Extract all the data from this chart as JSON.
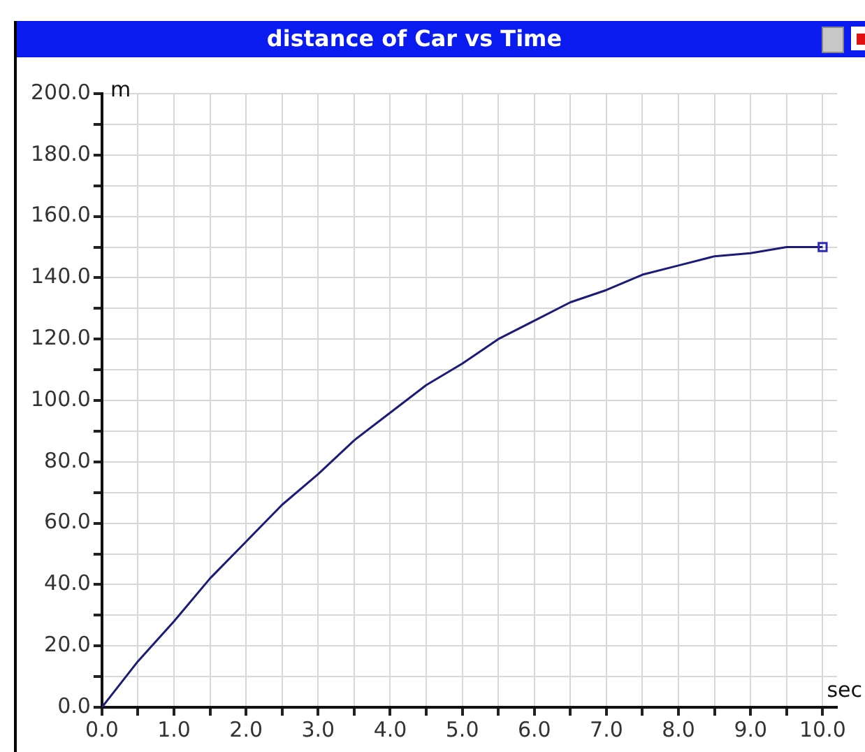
{
  "chart_data": {
    "type": "line",
    "title": "distance of Car vs Time",
    "xlabel": "sec",
    "ylabel": "m",
    "x": [
      0,
      0.5,
      1,
      1.5,
      2,
      2.5,
      3,
      3.5,
      4,
      4.5,
      5,
      5.5,
      6,
      6.5,
      7,
      7.5,
      8,
      8.5,
      9,
      9.5,
      10
    ],
    "series": [
      {
        "color": "#1c1c78",
        "values": [
          0,
          15,
          28,
          42,
          54,
          66,
          76,
          87,
          96,
          105,
          112,
          120,
          126,
          132,
          136,
          141,
          144,
          147,
          148,
          150,
          150
        ]
      }
    ],
    "xlim": [
      0,
      10.2
    ],
    "xticks": [
      {
        "value": 0,
        "label": "0.0"
      },
      {
        "value": 0.5,
        "label": null
      },
      {
        "value": 1,
        "label": "1.0"
      },
      {
        "value": 1.5,
        "label": null
      },
      {
        "value": 2,
        "label": "2.0"
      },
      {
        "value": 2.5,
        "label": null
      },
      {
        "value": 3,
        "label": "3.0"
      },
      {
        "value": 3.5,
        "label": null
      },
      {
        "value": 4,
        "label": "4.0"
      },
      {
        "value": 4.5,
        "label": null
      },
      {
        "value": 5,
        "label": "5.0"
      },
      {
        "value": 5.5,
        "label": null
      },
      {
        "value": 6,
        "label": "6.0"
      },
      {
        "value": 6.5,
        "label": null
      },
      {
        "value": 7,
        "label": "7.0"
      },
      {
        "value": 7.5,
        "label": null
      },
      {
        "value": 8,
        "label": "8.0"
      },
      {
        "value": 8.5,
        "label": null
      },
      {
        "value": 9,
        "label": "9.0"
      },
      {
        "value": 9.5,
        "label": null
      },
      {
        "value": 10,
        "label": "10.0"
      }
    ],
    "ylim": [
      0,
      200
    ],
    "yticks": [
      {
        "value": 0,
        "label": "0.0"
      },
      {
        "value": 10,
        "label": null
      },
      {
        "value": 20,
        "label": "20.0"
      },
      {
        "value": 30,
        "label": null
      },
      {
        "value": 40,
        "label": "40.0"
      },
      {
        "value": 50,
        "label": null
      },
      {
        "value": 60,
        "label": "60.0"
      },
      {
        "value": 70,
        "label": null
      },
      {
        "value": 80,
        "label": "80.0"
      },
      {
        "value": 90,
        "label": null
      },
      {
        "value": 100,
        "label": "100.0"
      },
      {
        "value": 110,
        "label": null
      },
      {
        "value": 120,
        "label": "120.0"
      },
      {
        "value": 130,
        "label": null
      },
      {
        "value": 140,
        "label": "140.0"
      },
      {
        "value": 150,
        "label": null
      },
      {
        "value": 160,
        "label": "160.0"
      },
      {
        "value": 170,
        "label": null
      },
      {
        "value": 180,
        "label": "180.0"
      },
      {
        "value": 190,
        "label": null
      },
      {
        "value": 200,
        "label": "200.0"
      }
    ],
    "grid": true,
    "legend": false,
    "marker": "none",
    "line_style": "solid"
  }
}
